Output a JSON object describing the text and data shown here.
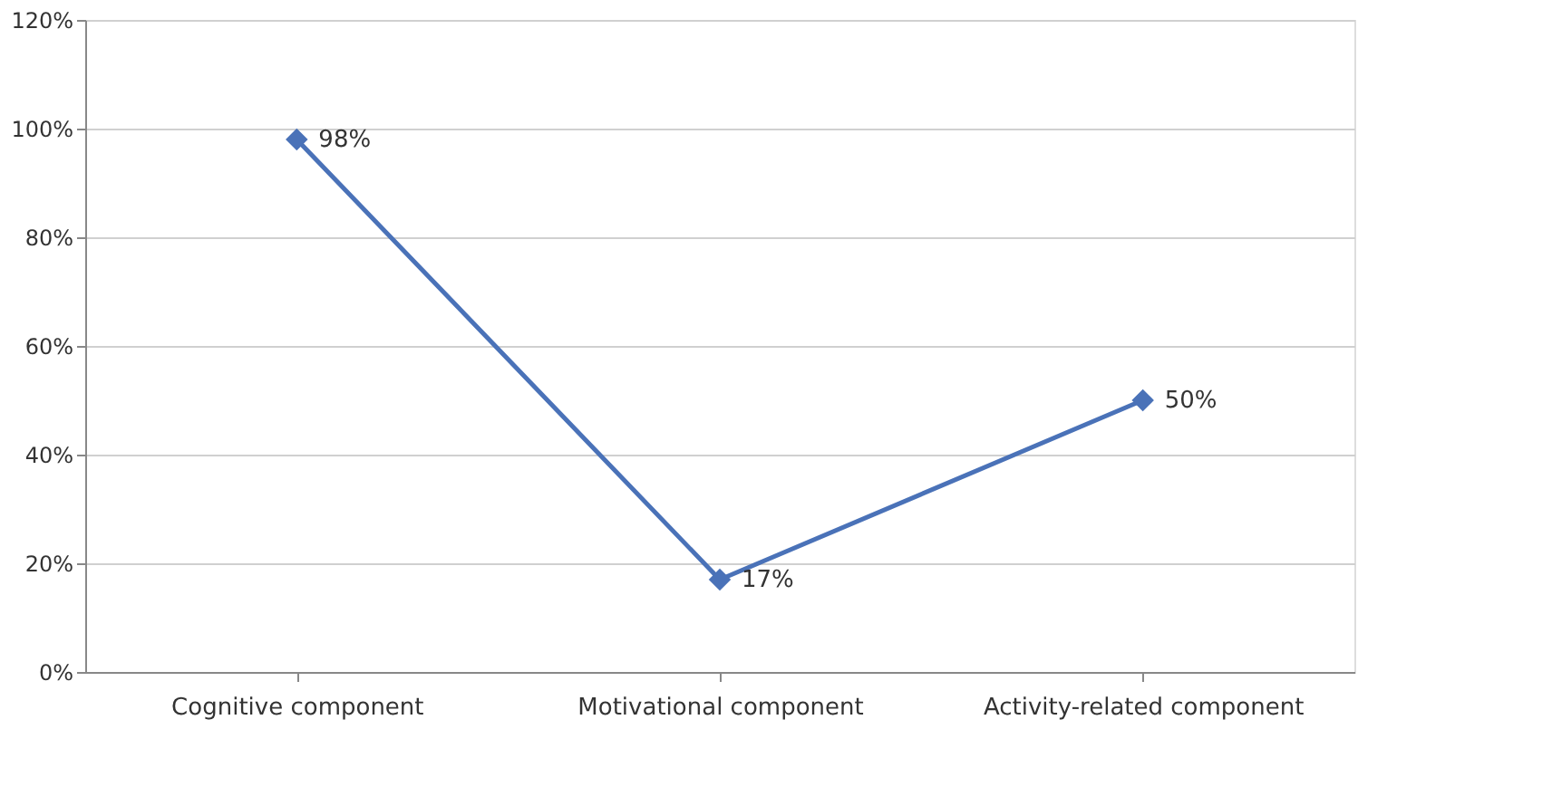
{
  "chart_data": {
    "type": "line",
    "categories": [
      "Cognitive component",
      "Motivational component",
      "Activity-related component"
    ],
    "series": [
      {
        "color": "#4a72b8",
        "values": [
          98,
          17,
          50
        ],
        "value_labels": [
          "98%",
          "17%",
          "50%"
        ]
      }
    ],
    "ylim": [
      0,
      120
    ],
    "yticks": [
      {
        "value": 0,
        "label": "0%"
      },
      {
        "value": 20,
        "label": "20%"
      },
      {
        "value": 40,
        "label": "40%"
      },
      {
        "value": 60,
        "label": "60%"
      },
      {
        "value": 80,
        "label": "80%"
      },
      {
        "value": 100,
        "label": "100%"
      },
      {
        "value": 120,
        "label": "120%"
      }
    ],
    "grid": "y",
    "marker": "diamond",
    "line_style": "solid"
  }
}
